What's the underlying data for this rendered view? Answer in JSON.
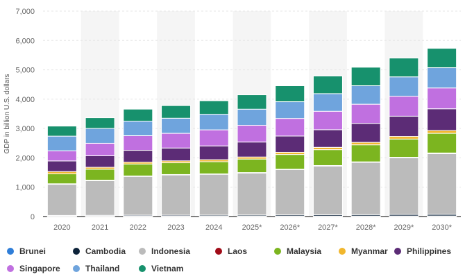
{
  "chart_data": {
    "type": "bar",
    "stacked": true,
    "ylabel": "GDP in billion U.S. dollars",
    "ylim": [
      0,
      7000
    ],
    "yticks": [
      "0",
      "1,000",
      "2,000",
      "3,000",
      "4,000",
      "5,000",
      "6,000",
      "7,000"
    ],
    "categories": [
      "2020",
      "2021",
      "2022",
      "2023",
      "2024",
      "2025*",
      "2026*",
      "2027*",
      "2028*",
      "2029*",
      "2030*"
    ],
    "series": [
      {
        "name": "Brunei",
        "color": "#2f7ed8",
        "values": [
          12,
          14,
          17,
          15,
          15,
          16,
          17,
          18,
          19,
          20,
          21
        ]
      },
      {
        "name": "Cambodia",
        "color": "#0d233a",
        "values": [
          26,
          27,
          30,
          32,
          34,
          37,
          40,
          43,
          46,
          50,
          54
        ]
      },
      {
        "name": "Indonesia",
        "color": "#bbbbbb",
        "values": [
          1060,
          1180,
          1320,
          1370,
          1390,
          1430,
          1540,
          1660,
          1780,
          1930,
          2070
        ]
      },
      {
        "name": "Laos",
        "color": "#a10c18",
        "values": [
          19,
          19,
          16,
          15,
          15,
          16,
          17,
          18,
          19,
          20,
          21
        ]
      },
      {
        "name": "Malaysia",
        "color": "#7cb520",
        "values": [
          337,
          373,
          408,
          400,
          415,
          460,
          500,
          540,
          580,
          620,
          670
        ]
      },
      {
        "name": "Myanmar",
        "color": "#f1b72e",
        "values": [
          79,
          65,
          62,
          66,
          68,
          70,
          74,
          79,
          84,
          90,
          96
        ]
      },
      {
        "name": "Philippines",
        "color": "#5c2c76",
        "values": [
          362,
          394,
          404,
          437,
          470,
          510,
          555,
          600,
          645,
          690,
          740
        ]
      },
      {
        "name": "Singapore",
        "color": "#c070e0",
        "values": [
          345,
          424,
          498,
          501,
          547,
          570,
          600,
          630,
          655,
          680,
          710
        ]
      },
      {
        "name": "Thailand",
        "color": "#6fa4dd",
        "values": [
          500,
          506,
          495,
          515,
          530,
          550,
          570,
          600,
          630,
          660,
          690
        ]
      },
      {
        "name": "Vietnam",
        "color": "#17916d",
        "values": [
          342,
          366,
          410,
          430,
          460,
          490,
          545,
          600,
          630,
          640,
          660
        ]
      }
    ]
  }
}
